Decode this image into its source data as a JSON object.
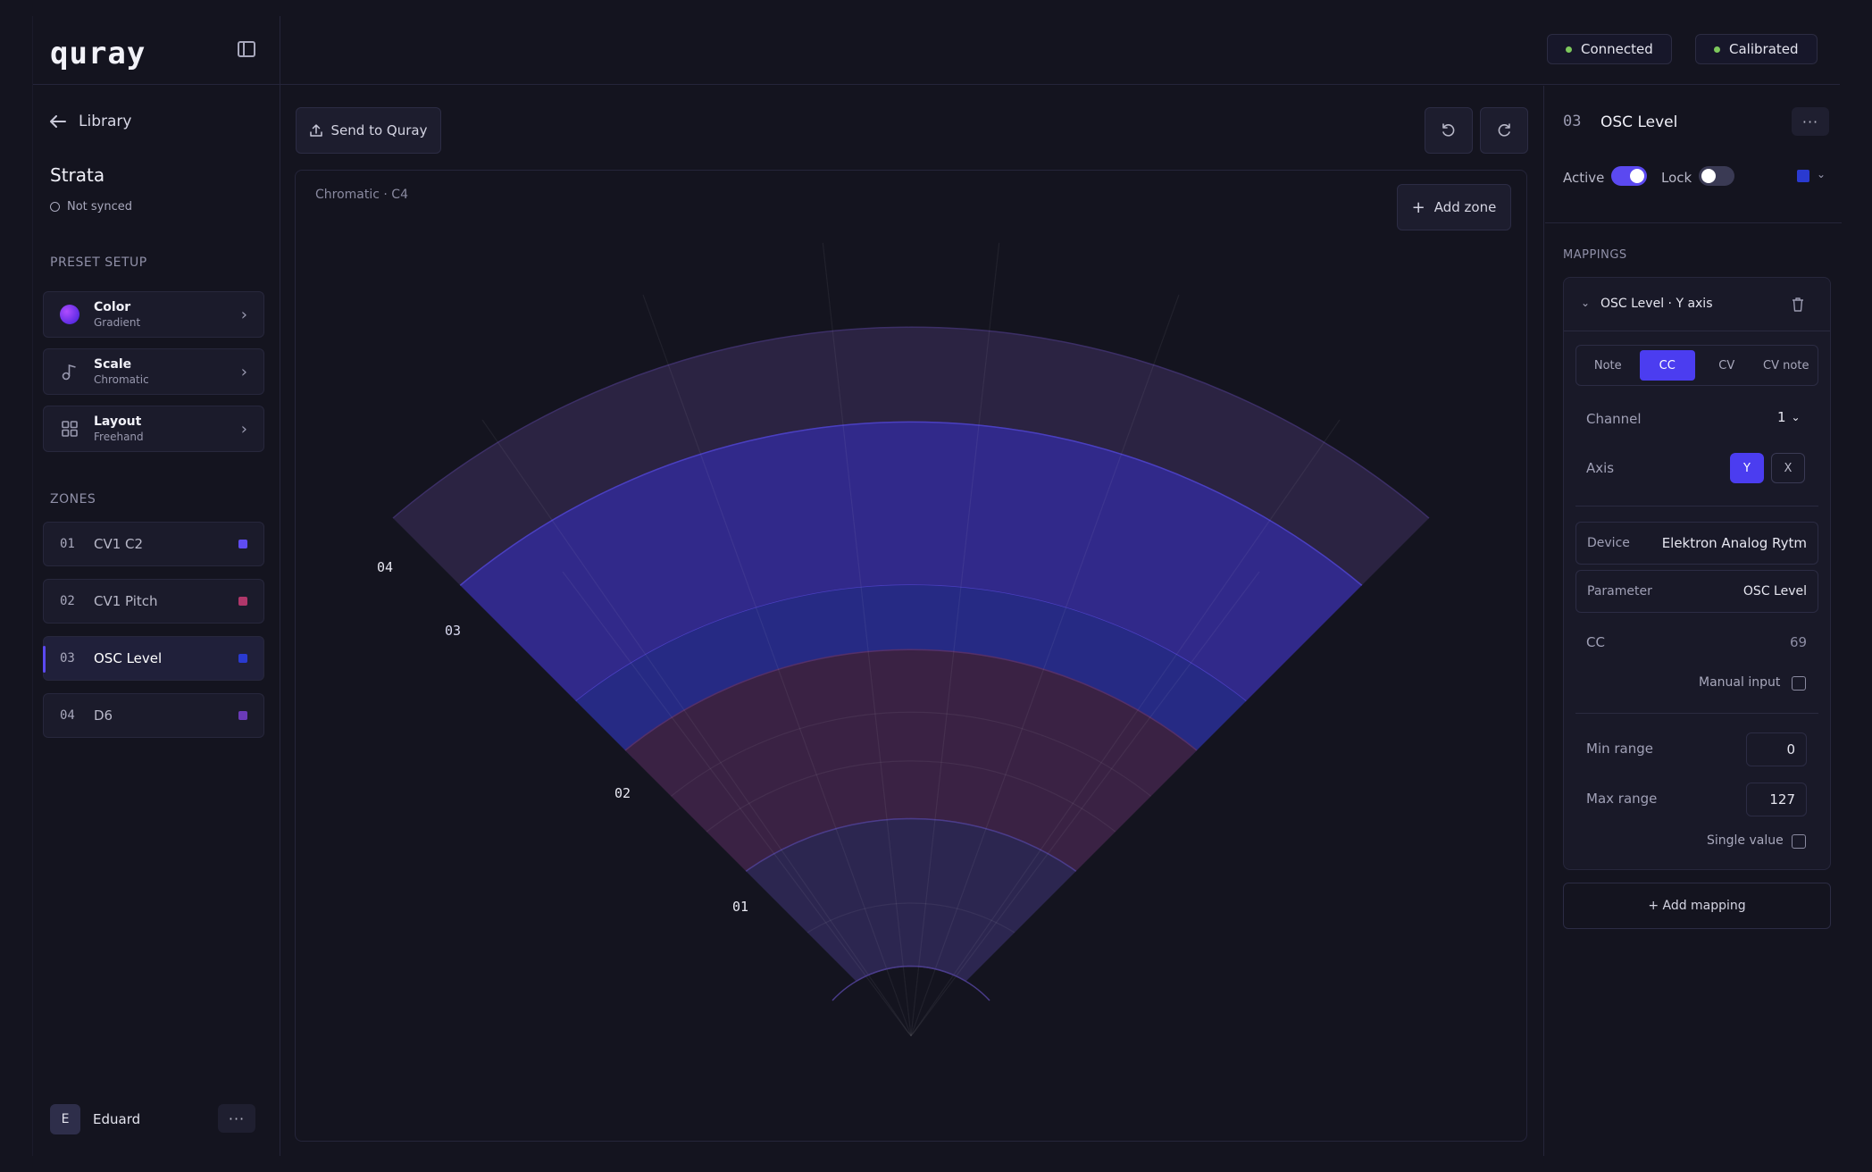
{
  "app": {
    "logo": "quray"
  },
  "status": {
    "connected": "Connected",
    "calibrated": "Calibrated"
  },
  "sidebar": {
    "back_label": "Library",
    "preset_name": "Strata",
    "sync_status": "Not synced",
    "preset_setup_heading": "PRESET SETUP",
    "setup": [
      {
        "title": "Color",
        "subtitle": "Gradient"
      },
      {
        "title": "Scale",
        "subtitle": "Chromatic"
      },
      {
        "title": "Layout",
        "subtitle": "Freehand"
      }
    ],
    "zones_heading": "ZONES",
    "zones": [
      {
        "num": "01",
        "name": "CV1 C2",
        "color": "#5f4cf0"
      },
      {
        "num": "02",
        "name": "CV1 Pitch",
        "color": "#b0376a"
      },
      {
        "num": "03",
        "name": "OSC Level",
        "color": "#2a3ad0"
      },
      {
        "num": "04",
        "name": "D6",
        "color": "#6a3ab8"
      }
    ],
    "user": {
      "initial": "E",
      "name": "Eduard"
    }
  },
  "toolbar": {
    "send_label": "Send to Quray"
  },
  "canvas": {
    "scale_label": "Chromatic · C4",
    "add_zone_label": "Add zone",
    "zone_labels": [
      "04",
      "03",
      "02",
      "01"
    ]
  },
  "panel": {
    "zone_num": "03",
    "zone_title": "OSC Level",
    "active_label": "Active",
    "lock_label": "Lock",
    "active_on": true,
    "lock_on": false,
    "zone_color": "#2a3ad0",
    "mappings_heading": "MAPPINGS",
    "mapping": {
      "title": "OSC Level · Y axis",
      "types": [
        "Note",
        "CC",
        "CV",
        "CV note"
      ],
      "selected_type": "CC",
      "channel_label": "Channel",
      "channel_value": "1",
      "axis_label": "Axis",
      "axis_options": [
        "Y",
        "X"
      ],
      "selected_axis": "Y",
      "device_label": "Device",
      "device_value": "Elektron Analog Rytm",
      "parameter_label": "Parameter",
      "parameter_value": "OSC Level",
      "cc_label": "CC",
      "cc_value": "69",
      "manual_input_label": "Manual input",
      "min_range_label": "Min range",
      "min_range_value": "0",
      "max_range_label": "Max range",
      "max_range_value": "127",
      "single_value_label": "Single value"
    },
    "add_mapping_label": "+ Add mapping"
  }
}
